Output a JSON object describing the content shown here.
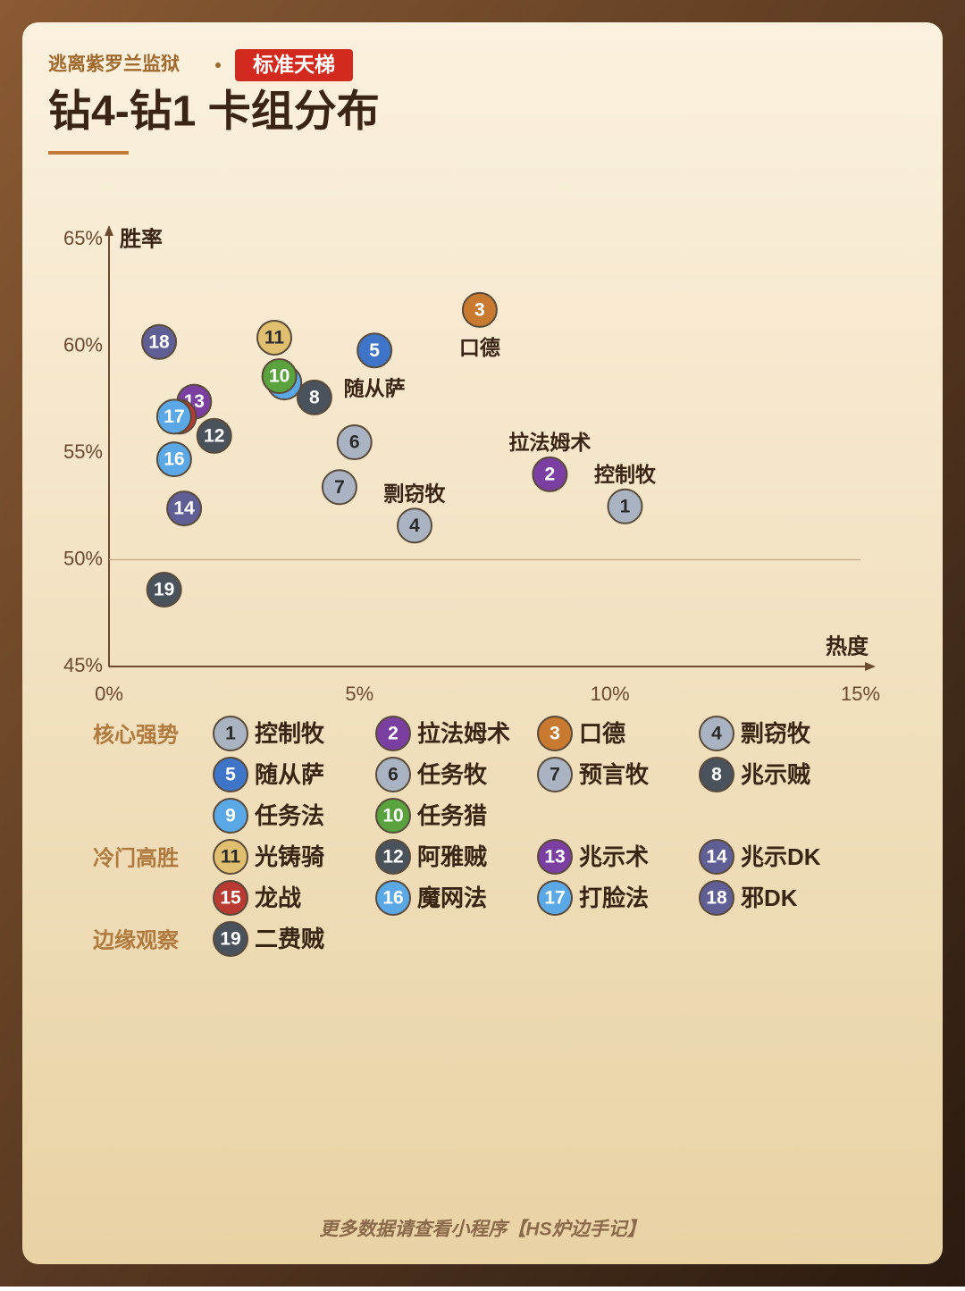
{
  "header": {
    "series_name": "逃离紫罗兰监狱",
    "badge": "标准天梯",
    "title": "钻4-钻1 卡组分布"
  },
  "chart_data": {
    "type": "scatter",
    "x_label": "热度",
    "y_label": "胜率",
    "xlim": [
      0,
      15
    ],
    "ylim": [
      45,
      65
    ],
    "xticks": [
      {
        "value": 0,
        "label": "0%"
      },
      {
        "value": 5,
        "label": "5%"
      },
      {
        "value": 10,
        "label": "10%"
      },
      {
        "value": 15,
        "label": "15%"
      }
    ],
    "yticks": [
      {
        "value": 45,
        "label": "45%"
      },
      {
        "value": 50,
        "label": "50%"
      },
      {
        "value": 55,
        "label": "55%"
      },
      {
        "value": 60,
        "label": "60%"
      },
      {
        "value": 65,
        "label": "65%"
      }
    ],
    "hline": 50,
    "groups": [
      {
        "name": "核心强势",
        "decks": [
          {
            "id": 1,
            "name": "控制牧",
            "color": "#a9b3c2",
            "x": 10.3,
            "y": 52.5,
            "labeled": true
          },
          {
            "id": 2,
            "name": "拉法姆术",
            "color": "#7a3fa0",
            "x": 8.8,
            "y": 54.0,
            "labeled": true
          },
          {
            "id": 3,
            "name": "口德",
            "color": "#c87a30",
            "x": 7.4,
            "y": 61.7,
            "labeled": true
          },
          {
            "id": 4,
            "name": "剽窃牧",
            "color": "#a9b3c2",
            "x": 6.1,
            "y": 51.6,
            "labeled": true
          },
          {
            "id": 5,
            "name": "随从萨",
            "color": "#3f75c9",
            "x": 5.3,
            "y": 59.8,
            "labeled": true
          },
          {
            "id": 6,
            "name": "任务牧",
            "color": "#a9b3c2",
            "x": 4.9,
            "y": 55.5
          },
          {
            "id": 7,
            "name": "预言牧",
            "color": "#a9b3c2",
            "x": 4.6,
            "y": 53.4
          },
          {
            "id": 8,
            "name": "兆示贼",
            "color": "#4a525c",
            "x": 4.1,
            "y": 57.6
          },
          {
            "id": 9,
            "name": "任务法",
            "color": "#5aa8e6",
            "x": 3.5,
            "y": 58.3
          },
          {
            "id": 10,
            "name": "任务猎",
            "color": "#5aa23e",
            "x": 3.4,
            "y": 58.6
          }
        ]
      },
      {
        "name": "冷门高胜",
        "decks": [
          {
            "id": 11,
            "name": "光铸骑",
            "color": "#e0c070",
            "x": 3.3,
            "y": 60.4
          },
          {
            "id": 12,
            "name": "阿雅贼",
            "color": "#4a525c",
            "x": 2.1,
            "y": 55.8
          },
          {
            "id": 13,
            "name": "兆示术",
            "color": "#7a3fa0",
            "x": 1.7,
            "y": 57.4
          },
          {
            "id": 14,
            "name": "兆示DK",
            "color": "#5f5f96",
            "x": 1.5,
            "y": 52.4
          },
          {
            "id": 15,
            "name": "龙战",
            "color": "#b83a32",
            "x": 1.4,
            "y": 56.7
          },
          {
            "id": 16,
            "name": "魔网法",
            "color": "#5aa8e6",
            "x": 1.3,
            "y": 54.7
          },
          {
            "id": 17,
            "name": "打脸法",
            "color": "#5aa8e6",
            "x": 1.3,
            "y": 56.7
          },
          {
            "id": 18,
            "name": "邪DK",
            "color": "#5f5f96",
            "x": 1.0,
            "y": 60.2
          }
        ]
      },
      {
        "name": "边缘观察",
        "decks": [
          {
            "id": 19,
            "name": "二费贼",
            "color": "#4a525c",
            "x": 1.1,
            "y": 48.6
          }
        ]
      }
    ]
  },
  "footer": "更多数据请查看小程序【HS炉边手记】"
}
